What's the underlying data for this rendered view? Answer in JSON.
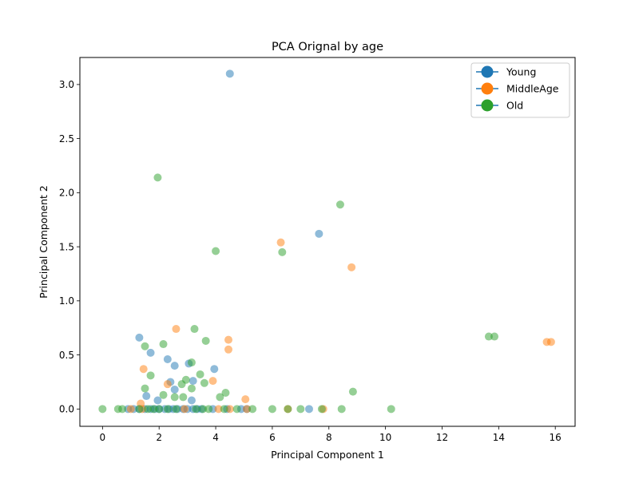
{
  "chart_data": {
    "type": "scatter",
    "title": "PCA Orignal by age",
    "xlabel": "Principal Component 1",
    "ylabel": "Principal Component 2",
    "xlim": [
      -0.8,
      16.7
    ],
    "ylim": [
      -0.16,
      3.25
    ],
    "xticks": [
      0,
      2,
      4,
      6,
      8,
      10,
      12,
      14,
      16
    ],
    "yticks": [
      0.0,
      0.5,
      1.0,
      1.5,
      2.0,
      2.5,
      3.0
    ],
    "xtick_labels": [
      "0",
      "2",
      "4",
      "6",
      "8",
      "10",
      "12",
      "14",
      "16"
    ],
    "ytick_labels": [
      "0.0",
      "0.5",
      "1.0",
      "1.5",
      "2.0",
      "2.5",
      "3.0"
    ],
    "grid": false,
    "legend_position": "top-right",
    "series": [
      {
        "name": "Young",
        "color": "#1f77b4",
        "points": [
          [
            4.5,
            3.1
          ],
          [
            7.65,
            1.62
          ],
          [
            1.3,
            0.66
          ],
          [
            1.7,
            0.52
          ],
          [
            2.3,
            0.46
          ],
          [
            3.05,
            0.42
          ],
          [
            3.95,
            0.37
          ],
          [
            2.55,
            0.4
          ],
          [
            2.4,
            0.25
          ],
          [
            3.2,
            0.26
          ],
          [
            2.55,
            0.18
          ],
          [
            1.55,
            0.12
          ],
          [
            1.95,
            0.08
          ],
          [
            3.15,
            0.08
          ],
          [
            0.9,
            0.0
          ],
          [
            1.1,
            0.0
          ],
          [
            1.3,
            0.0
          ],
          [
            1.5,
            0.0
          ],
          [
            1.7,
            0.0
          ],
          [
            1.85,
            0.0
          ],
          [
            2.0,
            0.0
          ],
          [
            2.2,
            0.0
          ],
          [
            2.35,
            0.0
          ],
          [
            2.5,
            0.0
          ],
          [
            2.65,
            0.0
          ],
          [
            2.85,
            0.0
          ],
          [
            3.0,
            0.0
          ],
          [
            3.2,
            0.0
          ],
          [
            3.35,
            0.0
          ],
          [
            3.5,
            0.0
          ],
          [
            3.9,
            0.0
          ],
          [
            4.4,
            0.0
          ],
          [
            4.9,
            0.0
          ],
          [
            5.1,
            0.0
          ],
          [
            7.3,
            0.0
          ]
        ]
      },
      {
        "name": "MiddleAge",
        "color": "#ff7f0e",
        "points": [
          [
            6.3,
            1.54
          ],
          [
            8.8,
            1.31
          ],
          [
            2.6,
            0.74
          ],
          [
            4.45,
            0.64
          ],
          [
            4.45,
            0.55
          ],
          [
            1.45,
            0.37
          ],
          [
            3.9,
            0.26
          ],
          [
            2.3,
            0.23
          ],
          [
            5.05,
            0.09
          ],
          [
            1.35,
            0.05
          ],
          [
            1.0,
            0.0
          ],
          [
            1.4,
            0.0
          ],
          [
            2.9,
            0.0
          ],
          [
            4.1,
            0.0
          ],
          [
            4.5,
            0.0
          ],
          [
            5.1,
            0.0
          ],
          [
            6.55,
            0.0
          ],
          [
            7.8,
            0.0
          ],
          [
            15.7,
            0.62
          ],
          [
            15.85,
            0.62
          ]
        ]
      },
      {
        "name": "Old",
        "color": "#2ca02c",
        "points": [
          [
            1.95,
            2.14
          ],
          [
            8.4,
            1.89
          ],
          [
            4.0,
            1.46
          ],
          [
            6.35,
            1.45
          ],
          [
            3.25,
            0.74
          ],
          [
            13.65,
            0.67
          ],
          [
            13.85,
            0.67
          ],
          [
            3.65,
            0.63
          ],
          [
            2.15,
            0.6
          ],
          [
            1.5,
            0.58
          ],
          [
            3.15,
            0.43
          ],
          [
            1.7,
            0.31
          ],
          [
            3.45,
            0.32
          ],
          [
            2.95,
            0.27
          ],
          [
            2.8,
            0.23
          ],
          [
            3.6,
            0.24
          ],
          [
            1.5,
            0.19
          ],
          [
            3.15,
            0.19
          ],
          [
            8.85,
            0.16
          ],
          [
            4.35,
            0.15
          ],
          [
            2.15,
            0.13
          ],
          [
            2.55,
            0.11
          ],
          [
            2.85,
            0.11
          ],
          [
            4.15,
            0.11
          ],
          [
            0.0,
            0.0
          ],
          [
            0.55,
            0.0
          ],
          [
            0.7,
            0.0
          ],
          [
            1.3,
            0.0
          ],
          [
            1.6,
            0.0
          ],
          [
            1.8,
            0.0
          ],
          [
            2.0,
            0.0
          ],
          [
            2.3,
            0.0
          ],
          [
            2.6,
            0.0
          ],
          [
            3.3,
            0.0
          ],
          [
            3.55,
            0.0
          ],
          [
            3.75,
            0.0
          ],
          [
            4.3,
            0.0
          ],
          [
            4.75,
            0.0
          ],
          [
            5.3,
            0.0
          ],
          [
            6.0,
            0.0
          ],
          [
            6.55,
            0.0
          ],
          [
            7.0,
            0.0
          ],
          [
            7.75,
            0.0
          ],
          [
            8.45,
            0.0
          ],
          [
            10.2,
            0.0
          ]
        ]
      }
    ]
  }
}
